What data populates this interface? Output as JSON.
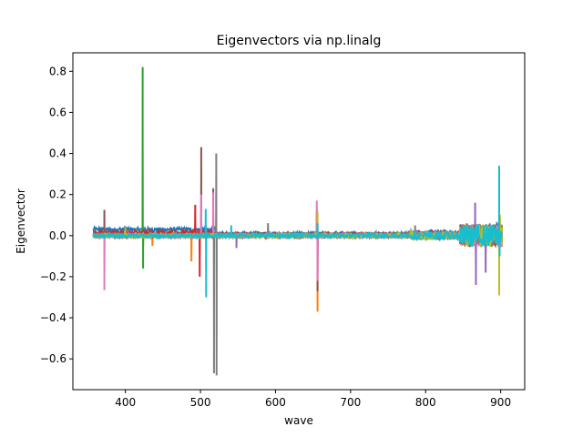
{
  "chart_data": {
    "type": "line",
    "title": "Eigenvectors via np.linalg",
    "xlabel": "wave",
    "ylabel": "Eigenvector",
    "xlim": [
      330,
      932
    ],
    "ylim": [
      -0.75,
      0.89
    ],
    "x_ticks": [
      400,
      500,
      600,
      700,
      800,
      900
    ],
    "x_tick_labels": [
      "400",
      "500",
      "600",
      "700",
      "800",
      "900"
    ],
    "y_ticks": [
      -0.6,
      -0.4,
      -0.2,
      0.0,
      0.2,
      0.4,
      0.6,
      0.8
    ],
    "y_tick_labels": [
      "−0.6",
      "−0.4",
      "−0.2",
      "0.0",
      "0.2",
      "0.4",
      "0.6",
      "0.8"
    ],
    "grid": false,
    "x_range": [
      357,
      902
    ],
    "series": [
      {
        "color": "#1f77b4",
        "baseline": 0.03,
        "spikes": [
          [
            365,
            0.04
          ],
          [
            400,
            0.045
          ],
          [
            656,
            -0.02
          ]
        ]
      },
      {
        "color": "#ff7f0e",
        "baseline": 0.0,
        "spikes": [
          [
            436,
            -0.05
          ],
          [
            488,
            -0.125
          ],
          [
            656,
            -0.37
          ],
          [
            898,
            -0.15
          ]
        ]
      },
      {
        "color": "#2ca02c",
        "baseline": 0.0,
        "spikes": [
          [
            423,
            0.82
          ],
          [
            423.6,
            -0.16
          ],
          [
            656,
            -0.05
          ]
        ]
      },
      {
        "color": "#d62728",
        "baseline": 0.015,
        "spikes": [
          [
            493,
            0.15
          ],
          [
            499,
            -0.2
          ],
          [
            656,
            -0.08
          ]
        ]
      },
      {
        "color": "#9467bd",
        "baseline": 0.0,
        "spikes": [
          [
            548,
            -0.06
          ],
          [
            866,
            0.16
          ],
          [
            867,
            -0.24
          ],
          [
            880,
            -0.18
          ]
        ]
      },
      {
        "color": "#8c564b",
        "baseline": 0.0,
        "spikes": [
          [
            372,
            0.125
          ],
          [
            501,
            0.43
          ],
          [
            517,
            0.23
          ],
          [
            655,
            0.12
          ],
          [
            656,
            -0.27
          ]
        ]
      },
      {
        "color": "#e377c2",
        "baseline": 0.0,
        "spikes": [
          [
            372,
            -0.265
          ],
          [
            501,
            0.2
          ],
          [
            517,
            0.21
          ],
          [
            655,
            0.17
          ],
          [
            656,
            -0.22
          ]
        ]
      },
      {
        "color": "#7f7f7f",
        "baseline": 0.0,
        "spikes": [
          [
            518,
            -0.67
          ],
          [
            521,
            0.4
          ],
          [
            521.5,
            -0.68
          ],
          [
            590,
            0.06
          ],
          [
            786,
            0.05
          ]
        ]
      },
      {
        "color": "#bcbd22",
        "baseline": 0.0,
        "spikes": [
          [
            400,
            0.04
          ],
          [
            656,
            0.12
          ],
          [
            780,
            0.03
          ],
          [
            898,
            -0.29
          ],
          [
            899,
            0.1
          ]
        ]
      },
      {
        "color": "#17becf",
        "baseline": 0.0,
        "spikes": [
          [
            507,
            0.13
          ],
          [
            507.6,
            -0.3
          ],
          [
            541,
            0.05
          ],
          [
            656,
            0.06
          ],
          [
            898,
            0.34
          ],
          [
            898.6,
            -0.1
          ]
        ]
      }
    ]
  }
}
